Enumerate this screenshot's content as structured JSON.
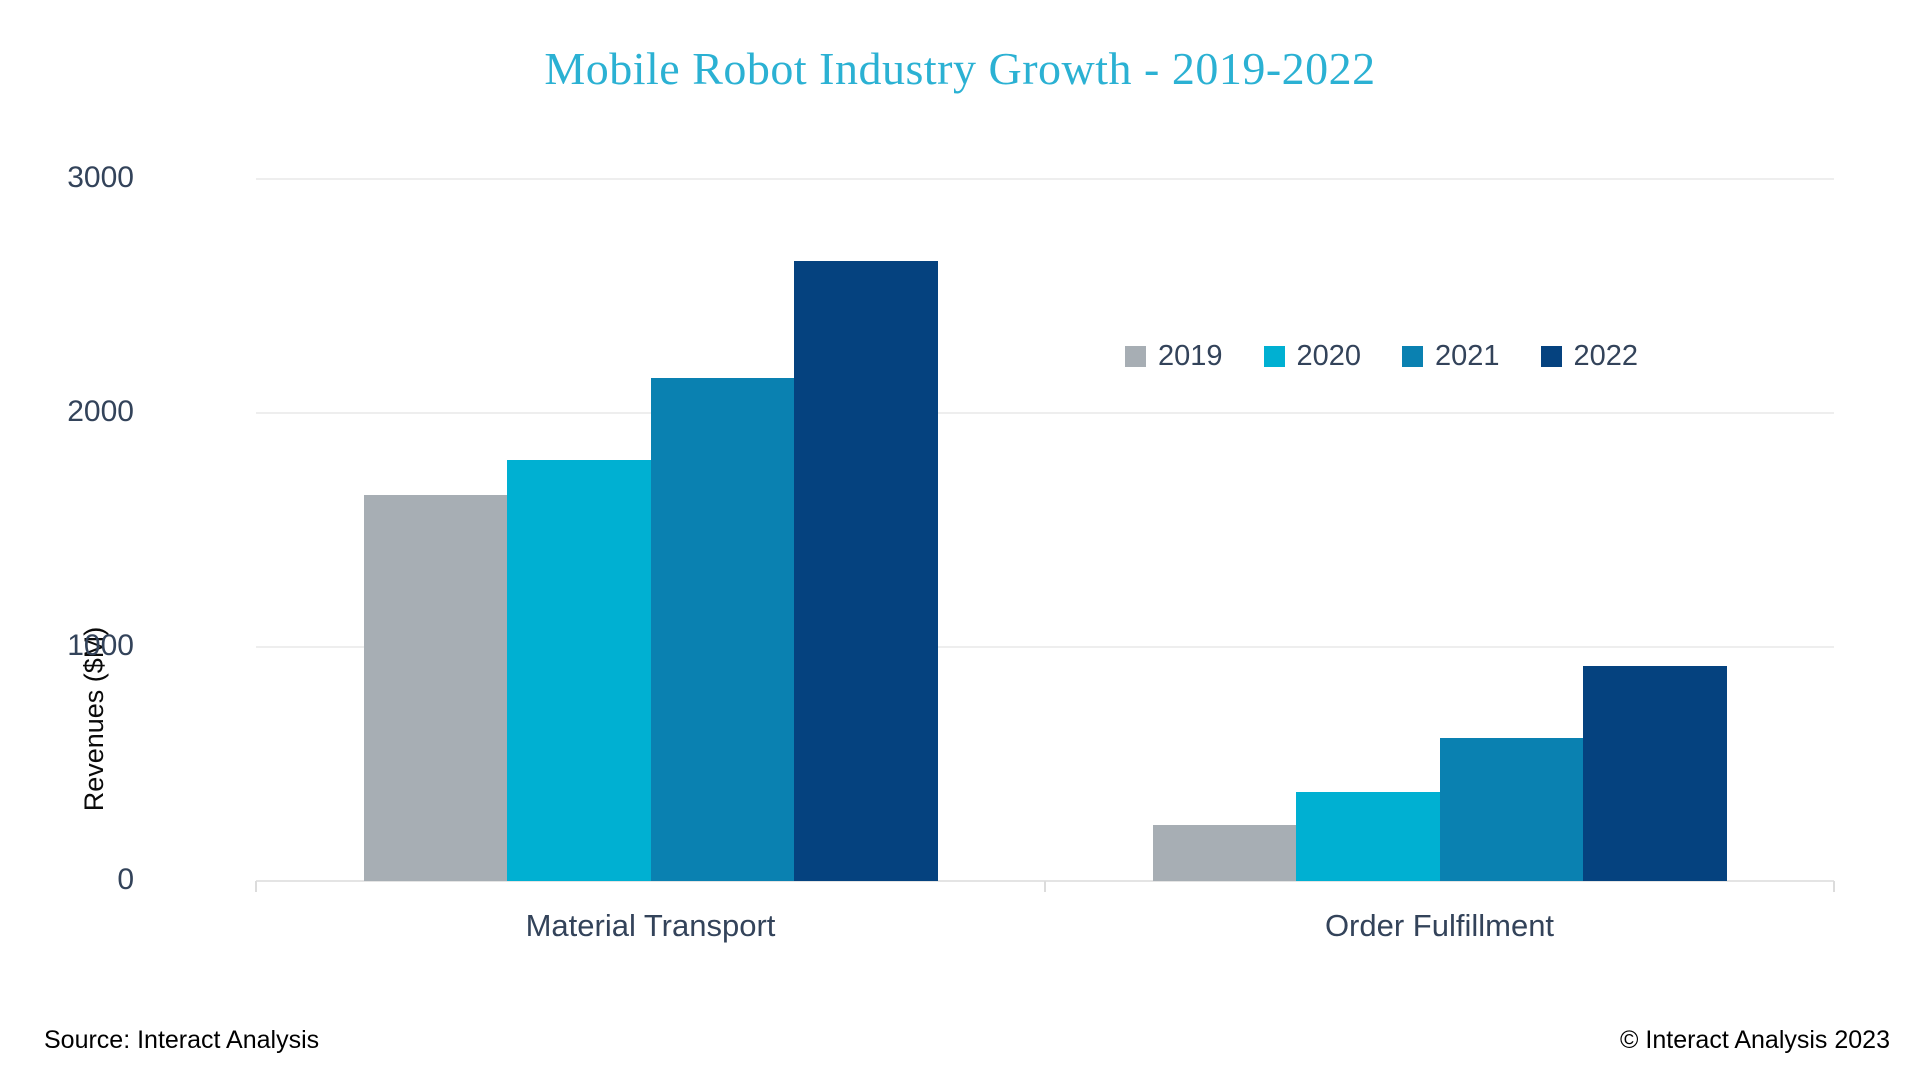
{
  "chart_data": {
    "type": "bar",
    "title": "Mobile Robot Industry Growth - 2019-2022",
    "ylabel": "Revenues ($M)",
    "xlabel": "",
    "categories": [
      "Material Transport",
      "Order Fulfillment"
    ],
    "series": [
      {
        "name": "2019",
        "color": "#a7aeb4",
        "values": [
          1650,
          240
        ]
      },
      {
        "name": "2020",
        "color": "#00b0d2",
        "values": [
          1800,
          380
        ]
      },
      {
        "name": "2021",
        "color": "#0a81b1",
        "values": [
          2150,
          610
        ]
      },
      {
        "name": "2022",
        "color": "#05427f",
        "values": [
          2650,
          920
        ]
      }
    ],
    "ylim": [
      0,
      3000
    ],
    "yticks": [
      0,
      1000,
      2000,
      3000
    ],
    "grid": "horizontal",
    "legend_position": "upper-right-inside"
  },
  "footer": {
    "source": "Source: Interact Analysis",
    "copyright": "© Interact Analysis 2023"
  },
  "colors": {
    "title": "#2bb1d3",
    "axis_text": "#33435a",
    "gridline": "#eeeeee",
    "baseline": "#e4e4e4",
    "tick": "#dcdcdc"
  }
}
